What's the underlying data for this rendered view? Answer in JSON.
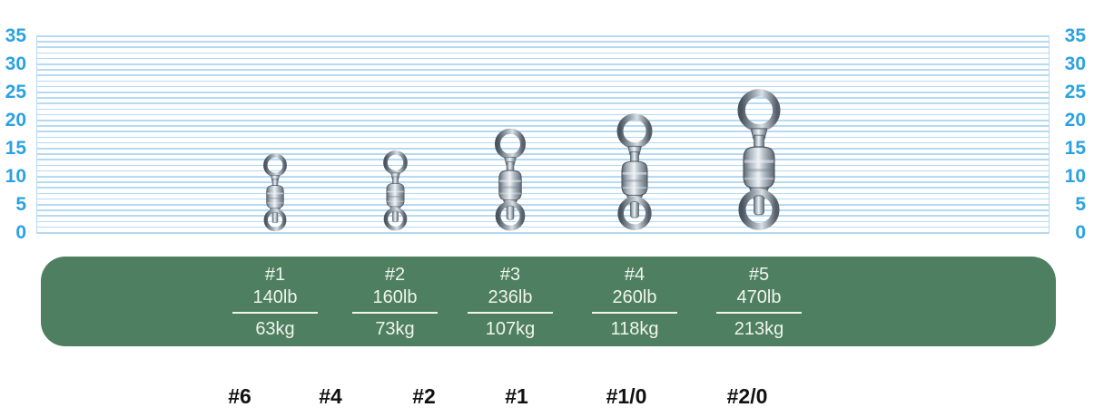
{
  "colors": {
    "axis_blue": "#2aa2e2",
    "grid_blue": "#b5daf2",
    "panel_green": "#4d7f60",
    "panel_text": "#f2f4ec",
    "size_label_black": "#111111"
  },
  "ruler": {
    "unit_min": 0,
    "unit_max": 35,
    "minor_step": 1,
    "labeled_step": 5,
    "tick_labels": [
      "0",
      "5",
      "10",
      "15",
      "20",
      "25",
      "30",
      "35"
    ]
  },
  "swivels": [
    {
      "icon": "ball-bearing-swivel",
      "size": "#1",
      "approx_length_units": 14.4
    },
    {
      "icon": "ball-bearing-swivel",
      "size": "#2",
      "approx_length_units": 15.0
    },
    {
      "icon": "ball-bearing-swivel",
      "size": "#3",
      "approx_length_units": 18.8
    },
    {
      "icon": "ball-bearing-swivel",
      "size": "#4",
      "approx_length_units": 21.6
    },
    {
      "icon": "ball-bearing-swivel",
      "size": "#5",
      "approx_length_units": 25.9
    }
  ],
  "spec_table": {
    "columns": [
      {
        "size": "#1",
        "strength_lb": "140lb",
        "strength_kg": "63kg"
      },
      {
        "size": "#2",
        "strength_lb": "160lb",
        "strength_kg": "73kg"
      },
      {
        "size": "#3",
        "strength_lb": "236lb",
        "strength_kg": "107kg"
      },
      {
        "size": "#4",
        "strength_lb": "260lb",
        "strength_kg": "118kg"
      },
      {
        "size": "#5",
        "strength_lb": "470lb",
        "strength_kg": "213kg"
      }
    ]
  },
  "ring_sizes": {
    "labels": [
      "#6",
      "#4",
      "#2",
      "#1",
      "#1/0",
      "#2/0"
    ]
  }
}
